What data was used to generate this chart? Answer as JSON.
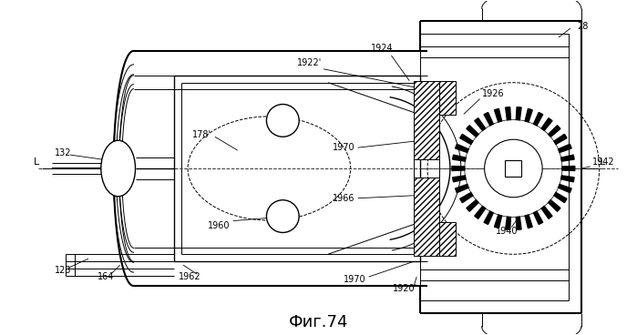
{
  "title": "Фиг.74",
  "title_fontsize": 13,
  "bg_color": "#ffffff",
  "line_color": "#000000",
  "figsize": [
    6.99,
    3.68
  ],
  "dpi": 100
}
